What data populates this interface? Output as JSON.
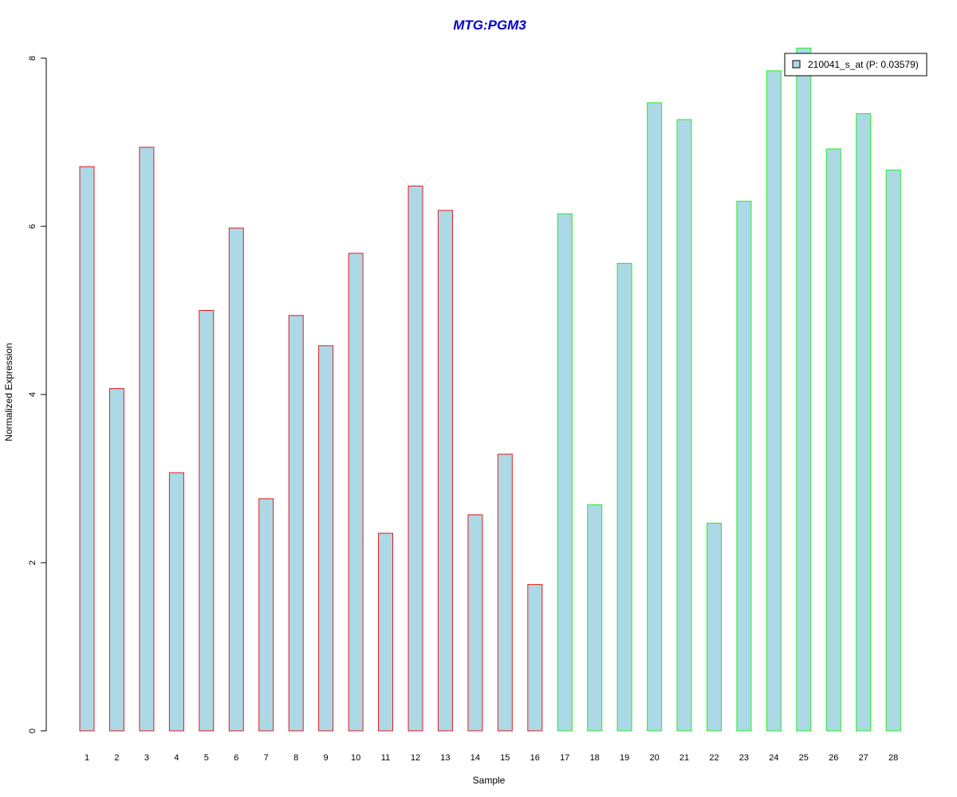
{
  "chart_data": {
    "type": "bar",
    "title": "MTG:PGM3",
    "xlabel": "Sample",
    "ylabel": "Normalized Expression",
    "ylim": [
      0,
      8
    ],
    "yticks": [
      0,
      2,
      4,
      6,
      8
    ],
    "categories": [
      "1",
      "2",
      "3",
      "4",
      "5",
      "6",
      "7",
      "8",
      "9",
      "10",
      "11",
      "12",
      "13",
      "14",
      "15",
      "16",
      "17",
      "18",
      "19",
      "20",
      "21",
      "22",
      "23",
      "24",
      "25",
      "26",
      "27",
      "28"
    ],
    "series": [
      {
        "name": "210041_s_at (P: 0.03579)",
        "values": [
          6.71,
          4.07,
          6.94,
          3.07,
          5.0,
          5.98,
          2.76,
          4.94,
          4.58,
          5.68,
          2.35,
          6.48,
          6.19,
          2.57,
          3.29,
          1.74,
          6.15,
          2.69,
          5.56,
          7.47,
          7.27,
          2.47,
          6.3,
          7.85,
          8.12,
          6.92,
          7.34,
          6.67
        ]
      }
    ],
    "group_border_colors": [
      "#e41a1c",
      "#e41a1c",
      "#e41a1c",
      "#e41a1c",
      "#e41a1c",
      "#e41a1c",
      "#e41a1c",
      "#e41a1c",
      "#e41a1c",
      "#e41a1c",
      "#e41a1c",
      "#e41a1c",
      "#e41a1c",
      "#e41a1c",
      "#e41a1c",
      "#e41a1c",
      "#22ee22",
      "#22ee22",
      "#22ee22",
      "#22ee22",
      "#22ee22",
      "#22ee22",
      "#22ee22",
      "#22ee22",
      "#22ee22",
      "#22ee22",
      "#22ee22",
      "#22ee22"
    ],
    "bar_fill": "#add8e6",
    "title_color": "#0000cc",
    "legend_position": "top-right",
    "grid": false
  }
}
